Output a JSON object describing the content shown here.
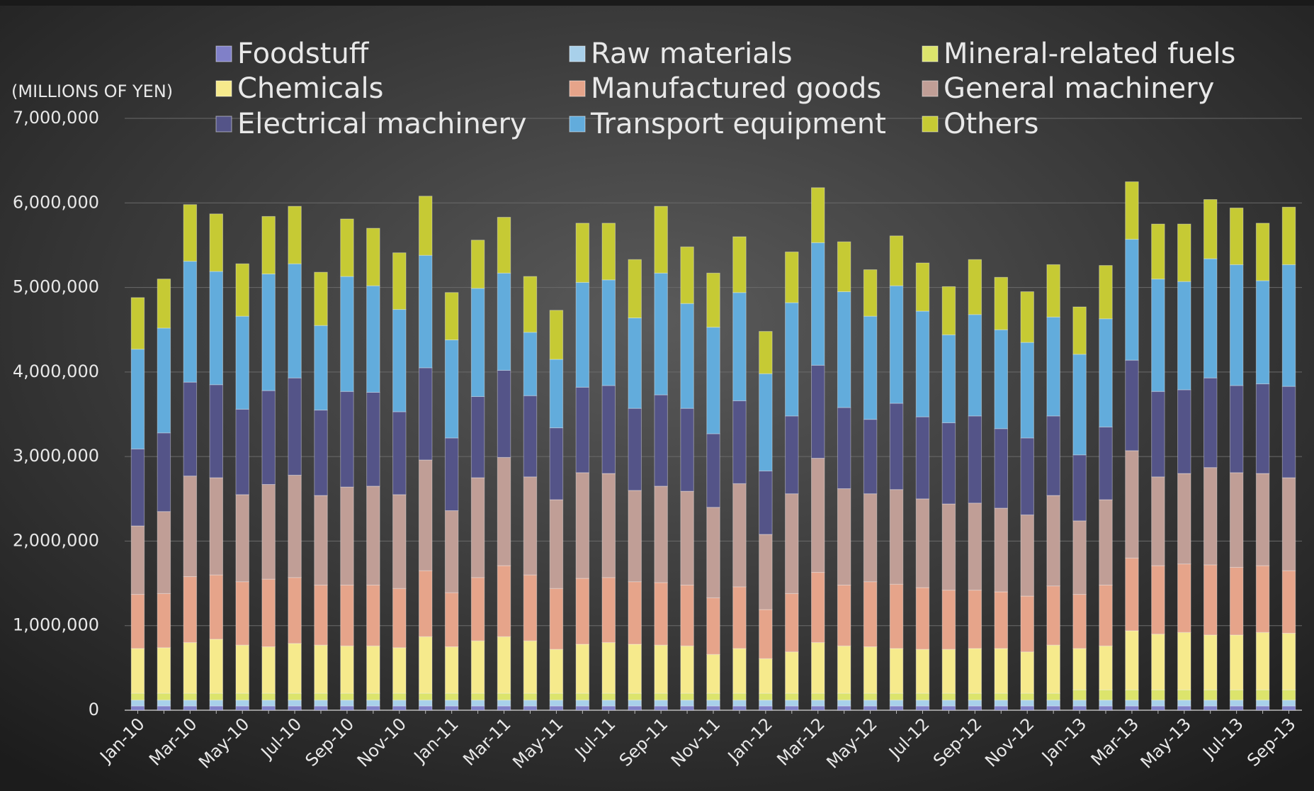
{
  "chart_data": {
    "type": "stacked-bar",
    "y_label": "(MILLIONS OF YEN)",
    "categories": [
      "Jan-10",
      null,
      "Mar-10",
      null,
      "May-10",
      null,
      "Jul-10",
      null,
      "Sep-10",
      null,
      "Nov-10",
      null,
      "Jan-11",
      null,
      "Mar-11",
      null,
      "May-11",
      null,
      "Jul-11",
      null,
      "Sep-11",
      null,
      "Nov-11",
      null,
      "Jan-12",
      null,
      "Mar-12",
      null,
      "May-12",
      null,
      "Jul-12",
      null,
      "Sep-12",
      null,
      "Nov-12",
      null,
      "Jan-13",
      null,
      "Mar-13",
      null,
      "May-13",
      null,
      "Jul-13",
      null,
      "Sep-13"
    ],
    "ylim": [
      0,
      7000000
    ],
    "yticks": [
      0,
      {
        "value": 1000000,
        "label": "1,000,000"
      },
      {
        "value": 2000000,
        "label": "2,000,000"
      },
      {
        "value": 3000000,
        "label": "3,000,000"
      },
      {
        "value": 4000000,
        "label": "4,000,000"
      },
      {
        "value": 5000000,
        "label": "5,000,000"
      },
      {
        "value": 6000000,
        "label": "6,000,000"
      },
      {
        "value": 7000000,
        "label": "7,000,000"
      }
    ],
    "grid": true,
    "series": [
      {
        "name": "Foodstuff",
        "color": "#8080c8",
        "values": [
          50000,
          50000,
          50000,
          50000,
          50000,
          50000,
          50000,
          50000,
          50000,
          50000,
          50000,
          50000,
          50000,
          50000,
          50000,
          50000,
          50000,
          50000,
          50000,
          50000,
          50000,
          50000,
          50000,
          50000,
          50000,
          50000,
          50000,
          50000,
          50000,
          50000,
          50000,
          50000,
          50000,
          50000,
          50000,
          50000,
          50000,
          50000,
          50000,
          50000,
          50000,
          50000,
          50000,
          50000,
          50000
        ]
      },
      {
        "name": "Raw materials",
        "color": "#a8d0ea",
        "values": [
          70000,
          70000,
          70000,
          70000,
          70000,
          70000,
          70000,
          70000,
          70000,
          70000,
          70000,
          70000,
          70000,
          70000,
          70000,
          70000,
          70000,
          70000,
          70000,
          70000,
          70000,
          70000,
          70000,
          70000,
          70000,
          70000,
          70000,
          70000,
          70000,
          70000,
          70000,
          70000,
          70000,
          70000,
          70000,
          70000,
          70000,
          70000,
          70000,
          70000,
          70000,
          70000,
          70000,
          70000,
          70000
        ]
      },
      {
        "name": "Mineral-related fuels",
        "color": "#dce46c",
        "values": [
          80000,
          80000,
          80000,
          80000,
          80000,
          80000,
          80000,
          80000,
          80000,
          80000,
          80000,
          80000,
          80000,
          80000,
          80000,
          80000,
          80000,
          80000,
          80000,
          80000,
          80000,
          80000,
          80000,
          80000,
          80000,
          80000,
          80000,
          80000,
          80000,
          80000,
          80000,
          80000,
          80000,
          80000,
          80000,
          80000,
          120000,
          120000,
          120000,
          120000,
          120000,
          120000,
          120000,
          120000,
          120000
        ]
      },
      {
        "name": "Chemicals",
        "color": "#f6ea8c",
        "values": [
          530000,
          540000,
          600000,
          640000,
          570000,
          550000,
          590000,
          570000,
          560000,
          560000,
          540000,
          670000,
          550000,
          620000,
          670000,
          620000,
          520000,
          580000,
          600000,
          580000,
          570000,
          560000,
          460000,
          530000,
          410000,
          490000,
          600000,
          560000,
          550000,
          530000,
          520000,
          520000,
          530000,
          530000,
          490000,
          570000,
          490000,
          520000,
          700000,
          660000,
          680000,
          650000,
          650000,
          680000,
          670000
        ]
      },
      {
        "name": "Manufactured goods",
        "color": "#e6a48a",
        "values": [
          640000,
          640000,
          780000,
          760000,
          750000,
          800000,
          780000,
          710000,
          720000,
          720000,
          700000,
          780000,
          640000,
          750000,
          840000,
          780000,
          720000,
          780000,
          770000,
          740000,
          740000,
          720000,
          670000,
          730000,
          580000,
          690000,
          830000,
          720000,
          770000,
          760000,
          730000,
          700000,
          690000,
          670000,
          660000,
          700000,
          640000,
          720000,
          860000,
          810000,
          810000,
          830000,
          800000,
          790000,
          740000
        ]
      },
      {
        "name": "General machinery",
        "color": "#c09e96",
        "values": [
          810000,
          970000,
          1190000,
          1150000,
          1030000,
          1120000,
          1210000,
          1060000,
          1160000,
          1170000,
          1110000,
          1310000,
          970000,
          1180000,
          1280000,
          1160000,
          1050000,
          1250000,
          1230000,
          1080000,
          1140000,
          1110000,
          1070000,
          1220000,
          890000,
          1180000,
          1350000,
          1140000,
          1040000,
          1120000,
          1050000,
          1020000,
          1030000,
          990000,
          960000,
          1070000,
          870000,
          1010000,
          1270000,
          1050000,
          1070000,
          1150000,
          1120000,
          1090000,
          1100000
        ]
      },
      {
        "name": "Electrical machinery",
        "color": "#545488",
        "values": [
          910000,
          930000,
          1110000,
          1100000,
          1010000,
          1110000,
          1150000,
          1010000,
          1130000,
          1110000,
          980000,
          1090000,
          860000,
          960000,
          1030000,
          960000,
          850000,
          1010000,
          1040000,
          970000,
          1080000,
          980000,
          870000,
          980000,
          750000,
          920000,
          1100000,
          960000,
          880000,
          1020000,
          970000,
          960000,
          1030000,
          940000,
          910000,
          940000,
          780000,
          860000,
          1070000,
          1010000,
          990000,
          1060000,
          1030000,
          1060000,
          1080000
        ]
      },
      {
        "name": "Transport equipment",
        "color": "#62acdc",
        "values": [
          1180000,
          1240000,
          1430000,
          1340000,
          1100000,
          1380000,
          1350000,
          1000000,
          1360000,
          1260000,
          1210000,
          1330000,
          1160000,
          1280000,
          1150000,
          750000,
          810000,
          1240000,
          1250000,
          1070000,
          1440000,
          1240000,
          1260000,
          1280000,
          1150000,
          1340000,
          1450000,
          1370000,
          1220000,
          1390000,
          1250000,
          1040000,
          1200000,
          1170000,
          1130000,
          1170000,
          1190000,
          1280000,
          1430000,
          1330000,
          1280000,
          1410000,
          1430000,
          1220000,
          1440000
        ]
      },
      {
        "name": "Others",
        "color": "#c6ca34",
        "values": [
          610000,
          580000,
          670000,
          680000,
          620000,
          680000,
          680000,
          630000,
          680000,
          680000,
          670000,
          700000,
          560000,
          570000,
          660000,
          660000,
          580000,
          700000,
          670000,
          690000,
          790000,
          670000,
          640000,
          660000,
          500000,
          600000,
          650000,
          590000,
          550000,
          590000,
          570000,
          570000,
          650000,
          620000,
          600000,
          620000,
          560000,
          630000,
          680000,
          650000,
          680000,
          700000,
          670000,
          680000,
          680000
        ]
      }
    ]
  }
}
